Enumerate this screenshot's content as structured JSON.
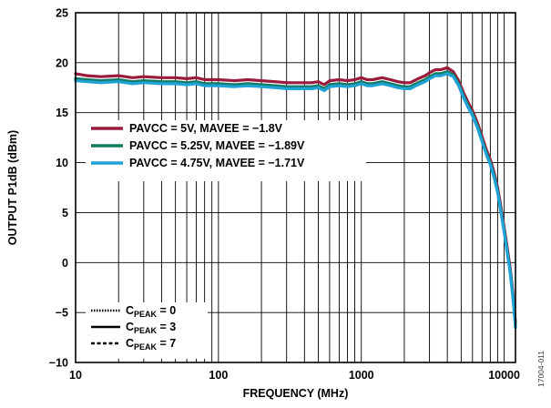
{
  "chart_data": {
    "type": "line",
    "xlabel": "FREQUENCY (MHz)",
    "ylabel": "OUTPUT P1dB (dBm)",
    "x_scale": "log",
    "xlim": [
      10,
      12000
    ],
    "ylim": [
      -10,
      25
    ],
    "x_ticks": [
      10,
      100,
      1000,
      10000
    ],
    "x_tick_labels": [
      "10",
      "100",
      "1000",
      "10000"
    ],
    "y_ticks": [
      -10,
      -5,
      0,
      5,
      10,
      15,
      20,
      25
    ],
    "y_tick_labels": [
      "−10",
      "−5",
      "0",
      "5",
      "10",
      "15",
      "20",
      "25"
    ],
    "grid": true,
    "figure_code": "17004-011",
    "series": [
      {
        "name": "PAVCC = 5V, MAVEE = −1.8V",
        "color": "#9b1b3d",
        "x": [
          10,
          12,
          15,
          20,
          25,
          30,
          40,
          50,
          60,
          70,
          80,
          100,
          130,
          160,
          200,
          250,
          300,
          350,
          400,
          450,
          500,
          550,
          600,
          700,
          800,
          900,
          1000,
          1100,
          1200,
          1400,
          1600,
          1800,
          2000,
          2200,
          2500,
          2800,
          3000,
          3300,
          3600,
          4000,
          4400,
          4800,
          5200,
          5600,
          6000,
          6500,
          7000,
          7500,
          8000,
          8500,
          9000,
          9500,
          10000,
          10500,
          11000,
          11500,
          12000
        ],
        "y": [
          18.9,
          18.7,
          18.6,
          18.7,
          18.5,
          18.6,
          18.5,
          18.5,
          18.4,
          18.5,
          18.3,
          18.3,
          18.2,
          18.3,
          18.2,
          18.1,
          18.0,
          18.0,
          18.0,
          18.0,
          18.1,
          17.8,
          18.2,
          18.3,
          18.2,
          18.3,
          18.5,
          18.3,
          18.3,
          18.5,
          18.3,
          18.1,
          18.0,
          18.0,
          18.4,
          18.7,
          19.0,
          19.3,
          19.3,
          19.5,
          19.1,
          18.2,
          17.0,
          16.0,
          15.2,
          14.0,
          12.6,
          11.3,
          10.3,
          9.0,
          7.5,
          5.5,
          3.5,
          1.5,
          -0.5,
          -3.0,
          -6.0
        ]
      },
      {
        "name": "PAVCC = 5.25V, MAVEE = −1.89V",
        "color": "#137a63",
        "x": [
          10,
          12,
          15,
          20,
          25,
          30,
          40,
          50,
          60,
          70,
          80,
          100,
          130,
          160,
          200,
          250,
          300,
          350,
          400,
          450,
          500,
          550,
          600,
          700,
          800,
          900,
          1000,
          1100,
          1200,
          1400,
          1600,
          1800,
          2000,
          2200,
          2500,
          2800,
          3000,
          3300,
          3600,
          4000,
          4400,
          4800,
          5200,
          5600,
          6000,
          6500,
          7000,
          7500,
          8000,
          8500,
          9000,
          9500,
          10000,
          10500,
          11000,
          11500,
          12000
        ],
        "y": [
          18.4,
          18.3,
          18.2,
          18.3,
          18.1,
          18.2,
          18.1,
          18.1,
          18.0,
          18.1,
          17.9,
          17.9,
          17.8,
          17.9,
          17.8,
          17.7,
          17.6,
          17.6,
          17.6,
          17.6,
          17.7,
          17.4,
          17.8,
          17.9,
          17.8,
          17.9,
          18.1,
          17.9,
          17.9,
          18.1,
          17.9,
          17.7,
          17.6,
          17.6,
          18.0,
          18.3,
          18.6,
          18.9,
          18.9,
          19.1,
          18.8,
          17.9,
          16.7,
          15.7,
          14.9,
          13.7,
          12.3,
          11.0,
          10.0,
          8.7,
          7.2,
          5.2,
          3.2,
          1.2,
          -0.8,
          -3.3,
          -6.3
        ]
      },
      {
        "name": "PAVCC = 4.75V, MAVEE = −1.71V",
        "color": "#1fa3d6",
        "x": [
          10,
          12,
          15,
          20,
          25,
          30,
          40,
          50,
          60,
          70,
          80,
          100,
          130,
          160,
          200,
          250,
          300,
          350,
          400,
          450,
          500,
          550,
          600,
          700,
          800,
          900,
          1000,
          1100,
          1200,
          1400,
          1600,
          1800,
          2000,
          2200,
          2500,
          2800,
          3000,
          3300,
          3600,
          4000,
          4400,
          4800,
          5200,
          5600,
          6000,
          6500,
          7000,
          7500,
          8000,
          8500,
          9000,
          9500,
          10000,
          10500,
          11000,
          11500,
          12000
        ],
        "y": [
          18.2,
          18.1,
          18.0,
          18.1,
          17.9,
          18.0,
          17.9,
          17.9,
          17.8,
          17.9,
          17.7,
          17.7,
          17.6,
          17.7,
          17.6,
          17.5,
          17.4,
          17.4,
          17.4,
          17.4,
          17.5,
          17.2,
          17.6,
          17.7,
          17.6,
          17.7,
          17.9,
          17.7,
          17.7,
          17.9,
          17.7,
          17.5,
          17.4,
          17.4,
          17.8,
          18.1,
          18.4,
          18.7,
          18.7,
          18.9,
          18.6,
          17.7,
          16.5,
          15.5,
          14.7,
          13.5,
          12.1,
          10.8,
          9.8,
          8.5,
          7.0,
          5.0,
          3.0,
          1.0,
          -1.0,
          -3.5,
          -6.5
        ]
      }
    ],
    "legend_colors": {
      "position": "center-left",
      "entries": [
        {
          "label": "PAVCC = 5V, MAVEE = −1.8V",
          "color": "#9b1b3d"
        },
        {
          "label": "PAVCC = 5.25V, MAVEE = −1.89V",
          "color": "#137a63"
        },
        {
          "label": "PAVCC = 4.75V, MAVEE = −1.71V",
          "color": "#1fa3d6"
        }
      ]
    },
    "legend_styles": {
      "position": "bottom-left",
      "entries": [
        {
          "base": "C",
          "sub": "PEAK",
          "suffix": " = 0",
          "dash": "dotted"
        },
        {
          "base": "C",
          "sub": "PEAK",
          "suffix": " = 3",
          "dash": "solid"
        },
        {
          "base": "C",
          "sub": "PEAK",
          "suffix": " = 7",
          "dash": "dashed"
        }
      ]
    }
  }
}
